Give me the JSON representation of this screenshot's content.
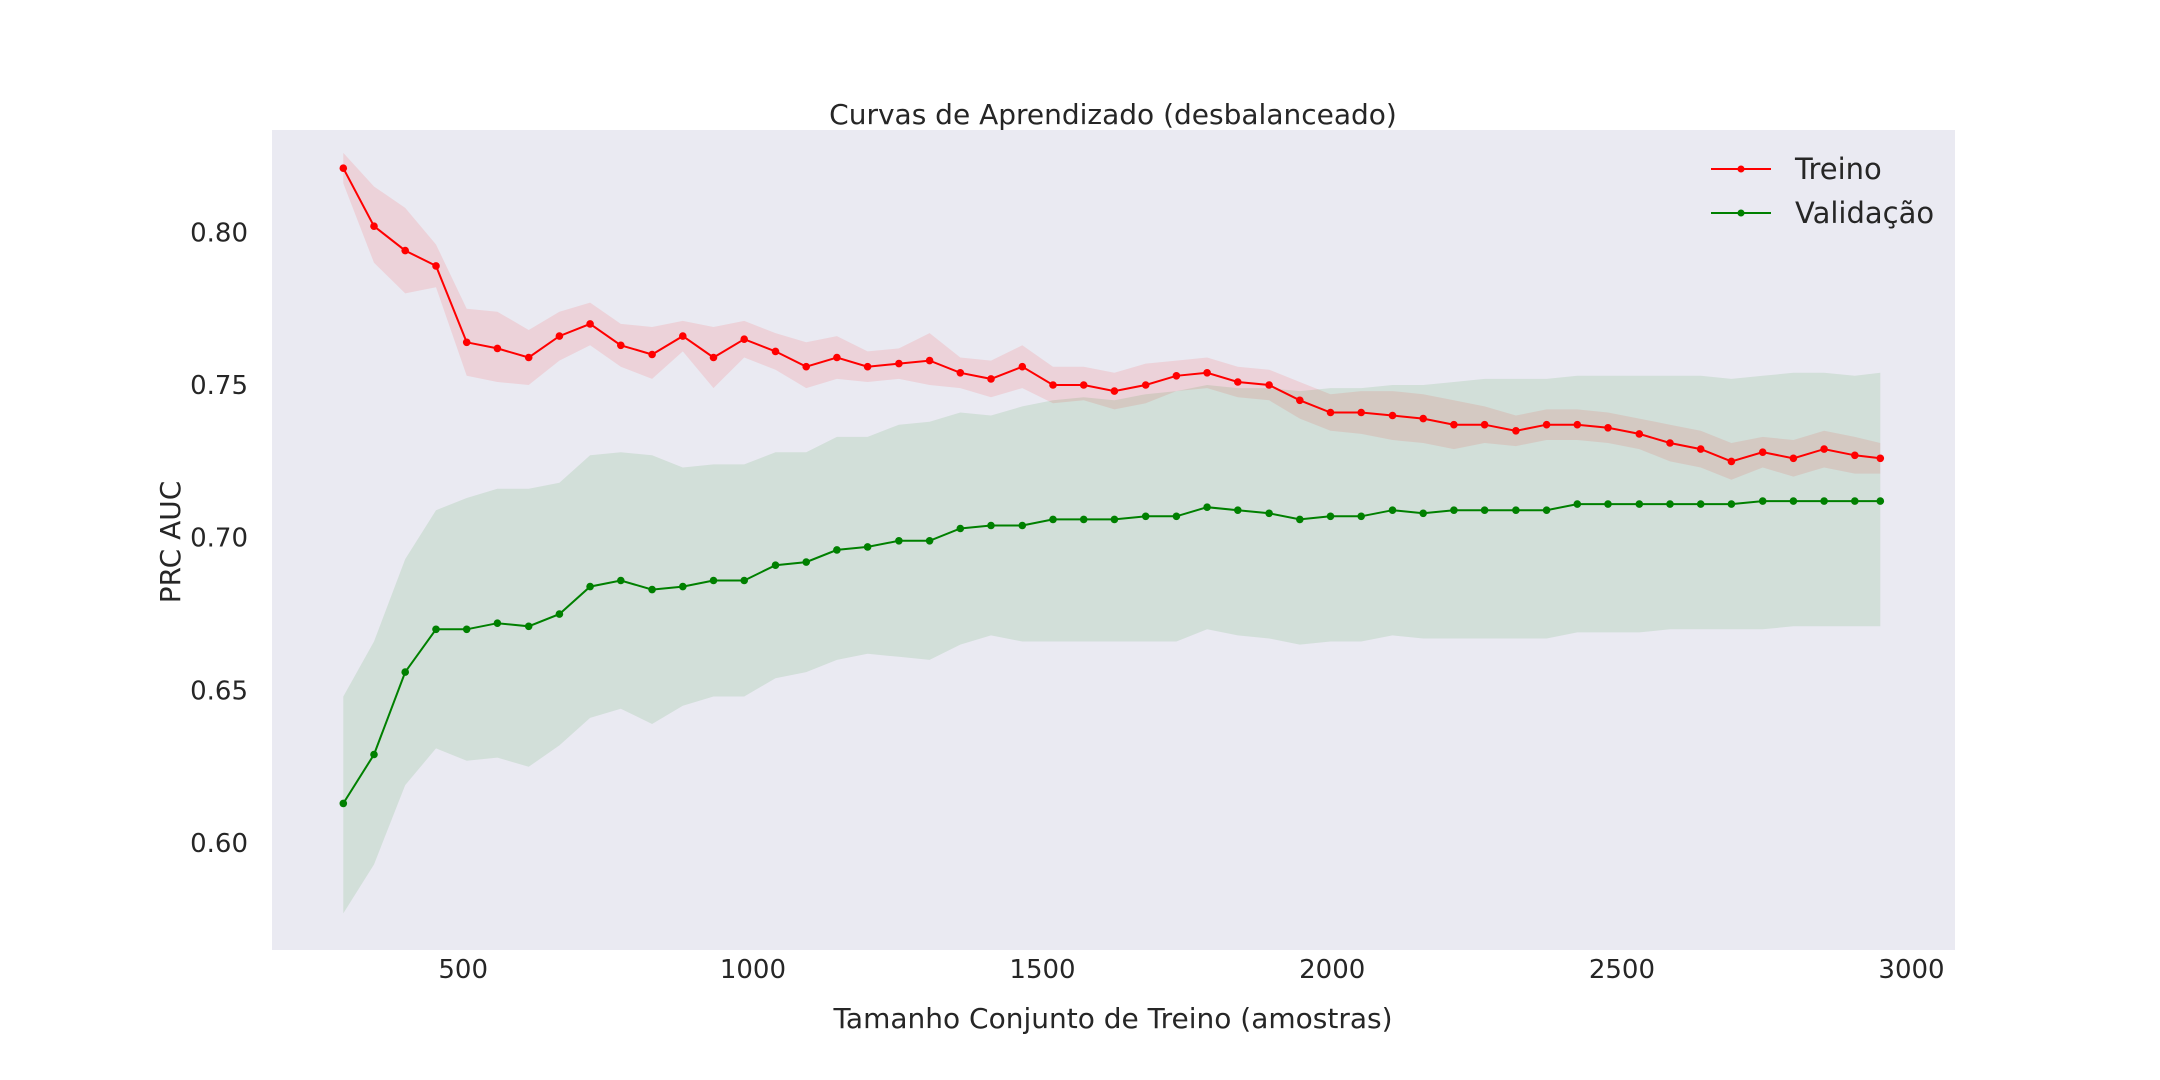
{
  "chart_data": {
    "type": "line",
    "title": "Curvas de Aprendizado (desbalanceado)",
    "xlabel": "Tamanho Conjunto de Treino (amostras)",
    "ylabel": "PRC AUC",
    "xlim": [
      170,
      3075
    ],
    "ylim": [
      0.565,
      0.8335
    ],
    "xticks": [
      500,
      1000,
      1500,
      2000,
      2500,
      3000
    ],
    "yticks": [
      0.6,
      0.65,
      0.7,
      0.75,
      0.8
    ],
    "xtick_labels": [
      "500",
      "1000",
      "1500",
      "2000",
      "2500",
      "3000"
    ],
    "ytick_labels": [
      "0.60",
      "0.65",
      "0.70",
      "0.75",
      "0.80"
    ],
    "grid": false,
    "legend_position": "top-right",
    "colors": {
      "plot_background": "#eaeaf2",
      "treino": "#ff0000",
      "validacao": "#008000"
    },
    "x": [
      293,
      346,
      400,
      453,
      506,
      559,
      613,
      666,
      719,
      772,
      826,
      879,
      932,
      985,
      1039,
      1092,
      1145,
      1198,
      1252,
      1305,
      1358,
      1411,
      1465,
      1518,
      1571,
      1624,
      1678,
      1731,
      1784,
      1837,
      1891,
      1944,
      1997,
      2050,
      2104,
      2157,
      2210,
      2263,
      2317,
      2370,
      2423,
      2476,
      2530,
      2583,
      2636,
      2689,
      2743,
      2796,
      2849,
      2902,
      2946
    ],
    "series": [
      {
        "name": "Treino",
        "color": "#ff0000",
        "values": [
          0.821,
          0.802,
          0.794,
          0.789,
          0.764,
          0.762,
          0.759,
          0.766,
          0.77,
          0.763,
          0.76,
          0.766,
          0.759,
          0.765,
          0.761,
          0.756,
          0.759,
          0.756,
          0.757,
          0.758,
          0.754,
          0.752,
          0.756,
          0.75,
          0.75,
          0.748,
          0.75,
          0.753,
          0.754,
          0.751,
          0.75,
          0.745,
          0.741,
          0.741,
          0.74,
          0.739,
          0.737,
          0.737,
          0.735,
          0.737,
          0.737,
          0.736,
          0.734,
          0.731,
          0.729,
          0.725,
          0.728,
          0.726,
          0.729,
          0.727,
          0.726
        ],
        "band_upper": [
          0.826,
          0.815,
          0.808,
          0.796,
          0.775,
          0.774,
          0.768,
          0.774,
          0.777,
          0.77,
          0.769,
          0.771,
          0.769,
          0.771,
          0.767,
          0.764,
          0.766,
          0.761,
          0.762,
          0.767,
          0.759,
          0.758,
          0.763,
          0.756,
          0.756,
          0.754,
          0.757,
          0.758,
          0.759,
          0.756,
          0.755,
          0.751,
          0.747,
          0.748,
          0.748,
          0.747,
          0.745,
          0.743,
          0.74,
          0.742,
          0.742,
          0.741,
          0.739,
          0.737,
          0.735,
          0.731,
          0.733,
          0.732,
          0.735,
          0.733,
          0.731
        ],
        "band_lower": [
          0.816,
          0.79,
          0.78,
          0.782,
          0.753,
          0.751,
          0.75,
          0.758,
          0.763,
          0.756,
          0.752,
          0.761,
          0.749,
          0.759,
          0.755,
          0.749,
          0.752,
          0.751,
          0.752,
          0.75,
          0.749,
          0.746,
          0.749,
          0.744,
          0.745,
          0.742,
          0.744,
          0.748,
          0.749,
          0.746,
          0.745,
          0.739,
          0.735,
          0.734,
          0.732,
          0.731,
          0.729,
          0.731,
          0.73,
          0.732,
          0.732,
          0.731,
          0.729,
          0.725,
          0.723,
          0.719,
          0.723,
          0.72,
          0.723,
          0.721,
          0.721
        ]
      },
      {
        "name": "Validação",
        "color": "#008000",
        "values": [
          0.613,
          0.629,
          0.656,
          0.67,
          0.67,
          0.672,
          0.671,
          0.675,
          0.684,
          0.686,
          0.683,
          0.684,
          0.686,
          0.686,
          0.691,
          0.692,
          0.696,
          0.697,
          0.699,
          0.699,
          0.703,
          0.704,
          0.704,
          0.706,
          0.706,
          0.706,
          0.707,
          0.707,
          0.71,
          0.709,
          0.708,
          0.706,
          0.707,
          0.707,
          0.709,
          0.708,
          0.709,
          0.709,
          0.709,
          0.709,
          0.711,
          0.711,
          0.711,
          0.711,
          0.711,
          0.711,
          0.712,
          0.712,
          0.712,
          0.712,
          0.712
        ],
        "band_upper": [
          0.648,
          0.666,
          0.693,
          0.709,
          0.713,
          0.716,
          0.716,
          0.718,
          0.727,
          0.728,
          0.727,
          0.723,
          0.724,
          0.724,
          0.728,
          0.728,
          0.733,
          0.733,
          0.737,
          0.738,
          0.741,
          0.74,
          0.743,
          0.745,
          0.746,
          0.745,
          0.747,
          0.748,
          0.75,
          0.749,
          0.749,
          0.748,
          0.749,
          0.749,
          0.75,
          0.75,
          0.751,
          0.752,
          0.752,
          0.752,
          0.753,
          0.753,
          0.753,
          0.753,
          0.753,
          0.752,
          0.753,
          0.754,
          0.754,
          0.753,
          0.754
        ],
        "band_lower": [
          0.577,
          0.593,
          0.619,
          0.631,
          0.627,
          0.628,
          0.625,
          0.632,
          0.641,
          0.644,
          0.639,
          0.645,
          0.648,
          0.648,
          0.654,
          0.656,
          0.66,
          0.662,
          0.661,
          0.66,
          0.665,
          0.668,
          0.666,
          0.666,
          0.666,
          0.666,
          0.666,
          0.666,
          0.67,
          0.668,
          0.667,
          0.665,
          0.666,
          0.666,
          0.668,
          0.667,
          0.667,
          0.667,
          0.667,
          0.667,
          0.669,
          0.669,
          0.669,
          0.67,
          0.67,
          0.67,
          0.67,
          0.671,
          0.671,
          0.671,
          0.671
        ]
      }
    ]
  }
}
